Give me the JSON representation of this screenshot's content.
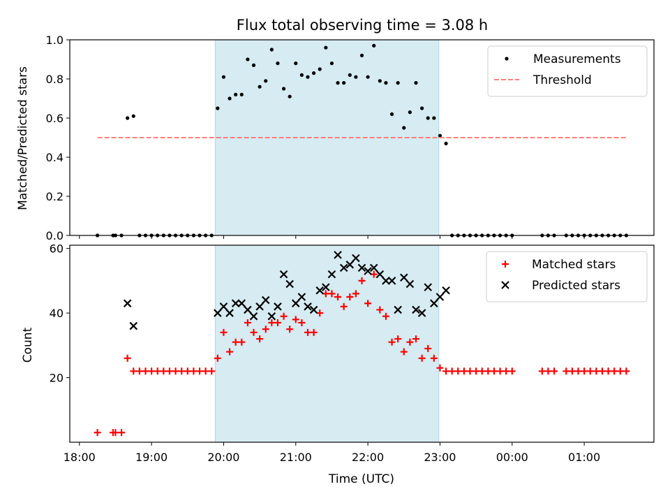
{
  "colors": {
    "span": "#add8e6",
    "threshold": "#ff7f7f",
    "measurement": "#000000",
    "matched": "#ff0000",
    "predicted": "#000000",
    "axes": "#000000"
  },
  "chart_data": [
    {
      "type": "scatter",
      "title": "Flux total observing time = 3.08 h",
      "xlabel": "",
      "ylabel": "Matched/Predicted stars",
      "ylim": [
        0,
        1.0
      ],
      "yticks": [
        "0.0",
        "0.2",
        "0.4",
        "0.6",
        "0.8",
        "1.0"
      ],
      "xlim": [
        "17:52",
        "01:58"
      ],
      "shaded_span": [
        "19:53",
        "22:59"
      ],
      "legend_position": "top-right",
      "series": [
        {
          "name": "Measurements",
          "marker": "dot",
          "points": [
            [
              "18:15",
              0.0
            ],
            [
              "18:28",
              0.0
            ],
            [
              "18:30",
              0.0
            ],
            [
              "18:35",
              0.0
            ],
            [
              "18:40",
              0.6
            ],
            [
              "18:45",
              0.61
            ],
            [
              "18:50",
              0.0
            ],
            [
              "18:55",
              0.0
            ],
            [
              "19:00",
              0.0
            ],
            [
              "19:05",
              0.0
            ],
            [
              "19:10",
              0.0
            ],
            [
              "19:15",
              0.0
            ],
            [
              "19:20",
              0.0
            ],
            [
              "19:25",
              0.0
            ],
            [
              "19:30",
              0.0
            ],
            [
              "19:35",
              0.0
            ],
            [
              "19:40",
              0.0
            ],
            [
              "19:45",
              0.0
            ],
            [
              "19:50",
              0.0
            ],
            [
              "19:55",
              0.65
            ],
            [
              "20:00",
              0.81
            ],
            [
              "20:05",
              0.7
            ],
            [
              "20:10",
              0.72
            ],
            [
              "20:15",
              0.72
            ],
            [
              "20:20",
              0.9
            ],
            [
              "20:25",
              0.87
            ],
            [
              "20:30",
              0.76
            ],
            [
              "20:35",
              0.79
            ],
            [
              "20:40",
              0.95
            ],
            [
              "20:45",
              0.88
            ],
            [
              "20:50",
              0.75
            ],
            [
              "20:55",
              0.71
            ],
            [
              "21:00",
              0.88
            ],
            [
              "21:05",
              0.82
            ],
            [
              "21:10",
              0.81
            ],
            [
              "21:15",
              0.83
            ],
            [
              "21:20",
              0.85
            ],
            [
              "21:25",
              0.96
            ],
            [
              "21:30",
              0.88
            ],
            [
              "21:35",
              0.78
            ],
            [
              "21:40",
              0.78
            ],
            [
              "21:45",
              0.82
            ],
            [
              "21:50",
              0.81
            ],
            [
              "21:55",
              0.92
            ],
            [
              "22:00",
              0.81
            ],
            [
              "22:05",
              0.97
            ],
            [
              "22:10",
              0.79
            ],
            [
              "22:15",
              0.78
            ],
            [
              "22:20",
              0.62
            ],
            [
              "22:25",
              0.78
            ],
            [
              "22:30",
              0.55
            ],
            [
              "22:35",
              0.63
            ],
            [
              "22:40",
              0.78
            ],
            [
              "22:45",
              0.65
            ],
            [
              "22:50",
              0.6
            ],
            [
              "22:55",
              0.6
            ],
            [
              "23:00",
              0.51
            ],
            [
              "23:05",
              0.47
            ],
            [
              "23:10",
              0.0
            ],
            [
              "23:15",
              0.0
            ],
            [
              "23:20",
              0.0
            ],
            [
              "23:25",
              0.0
            ],
            [
              "23:30",
              0.0
            ],
            [
              "23:35",
              0.0
            ],
            [
              "23:40",
              0.0
            ],
            [
              "23:45",
              0.0
            ],
            [
              "23:50",
              0.0
            ],
            [
              "23:55",
              0.0
            ],
            [
              "00:00",
              0.0
            ],
            [
              "00:25",
              0.0
            ],
            [
              "00:30",
              0.0
            ],
            [
              "00:35",
              0.0
            ],
            [
              "00:45",
              0.0
            ],
            [
              "00:50",
              0.0
            ],
            [
              "00:55",
              0.0
            ],
            [
              "01:00",
              0.0
            ],
            [
              "01:05",
              0.0
            ],
            [
              "01:10",
              0.0
            ],
            [
              "01:15",
              0.0
            ],
            [
              "01:20",
              0.0
            ],
            [
              "01:25",
              0.0
            ],
            [
              "01:30",
              0.0
            ],
            [
              "01:35",
              0.0
            ]
          ]
        },
        {
          "name": "Threshold",
          "style": "dashed",
          "x_range": [
            "18:15",
            "01:35"
          ],
          "value": 0.5
        }
      ]
    },
    {
      "type": "scatter",
      "title": "",
      "xlabel": "Time (UTC)",
      "ylabel": "Count",
      "ylim": [
        0,
        61
      ],
      "yticks": [
        "20",
        "40",
        "60"
      ],
      "xlim": [
        "17:52",
        "01:58"
      ],
      "xticks": [
        "18:00",
        "19:00",
        "20:00",
        "21:00",
        "22:00",
        "23:00",
        "00:00",
        "01:00"
      ],
      "shaded_span": [
        "19:53",
        "22:59"
      ],
      "legend_position": "top-right",
      "series": [
        {
          "name": "Matched stars",
          "marker": "plus",
          "points": [
            [
              "18:15",
              3
            ],
            [
              "18:28",
              3
            ],
            [
              "18:30",
              3
            ],
            [
              "18:35",
              3
            ],
            [
              "18:40",
              26
            ],
            [
              "18:45",
              22
            ],
            [
              "18:50",
              22
            ],
            [
              "18:55",
              22
            ],
            [
              "19:00",
              22
            ],
            [
              "19:05",
              22
            ],
            [
              "19:10",
              22
            ],
            [
              "19:15",
              22
            ],
            [
              "19:20",
              22
            ],
            [
              "19:25",
              22
            ],
            [
              "19:30",
              22
            ],
            [
              "19:35",
              22
            ],
            [
              "19:40",
              22
            ],
            [
              "19:45",
              22
            ],
            [
              "19:50",
              22
            ],
            [
              "19:55",
              26
            ],
            [
              "20:00",
              34
            ],
            [
              "20:05",
              28
            ],
            [
              "20:10",
              31
            ],
            [
              "20:15",
              31
            ],
            [
              "20:20",
              37
            ],
            [
              "20:25",
              34
            ],
            [
              "20:30",
              32
            ],
            [
              "20:35",
              35
            ],
            [
              "20:40",
              37
            ],
            [
              "20:45",
              37
            ],
            [
              "20:50",
              39
            ],
            [
              "20:55",
              35
            ],
            [
              "21:00",
              38
            ],
            [
              "21:05",
              37
            ],
            [
              "21:10",
              34
            ],
            [
              "21:15",
              34
            ],
            [
              "21:20",
              40
            ],
            [
              "21:25",
              46
            ],
            [
              "21:30",
              46
            ],
            [
              "21:35",
              45
            ],
            [
              "21:40",
              42
            ],
            [
              "21:45",
              45
            ],
            [
              "21:50",
              46
            ],
            [
              "21:55",
              50
            ],
            [
              "22:00",
              43
            ],
            [
              "22:05",
              52
            ],
            [
              "22:10",
              41
            ],
            [
              "22:15",
              39
            ],
            [
              "22:20",
              31
            ],
            [
              "22:25",
              32
            ],
            [
              "22:30",
              28
            ],
            [
              "22:35",
              31
            ],
            [
              "22:40",
              32
            ],
            [
              "22:45",
              26
            ],
            [
              "22:50",
              29
            ],
            [
              "22:55",
              26
            ],
            [
              "23:00",
              23
            ],
            [
              "23:05",
              22
            ],
            [
              "23:10",
              22
            ],
            [
              "23:15",
              22
            ],
            [
              "23:20",
              22
            ],
            [
              "23:25",
              22
            ],
            [
              "23:30",
              22
            ],
            [
              "23:35",
              22
            ],
            [
              "23:40",
              22
            ],
            [
              "23:45",
              22
            ],
            [
              "23:50",
              22
            ],
            [
              "23:55",
              22
            ],
            [
              "00:00",
              22
            ],
            [
              "00:25",
              22
            ],
            [
              "00:30",
              22
            ],
            [
              "00:35",
              22
            ],
            [
              "00:45",
              22
            ],
            [
              "00:50",
              22
            ],
            [
              "00:55",
              22
            ],
            [
              "01:00",
              22
            ],
            [
              "01:05",
              22
            ],
            [
              "01:10",
              22
            ],
            [
              "01:15",
              22
            ],
            [
              "01:20",
              22
            ],
            [
              "01:25",
              22
            ],
            [
              "01:30",
              22
            ],
            [
              "01:35",
              22
            ]
          ]
        },
        {
          "name": "Predicted stars",
          "marker": "x",
          "points": [
            [
              "18:40",
              43
            ],
            [
              "18:45",
              36
            ],
            [
              "19:55",
              40
            ],
            [
              "20:00",
              42
            ],
            [
              "20:05",
              40
            ],
            [
              "20:10",
              43
            ],
            [
              "20:15",
              43
            ],
            [
              "20:20",
              41
            ],
            [
              "20:25",
              39
            ],
            [
              "20:30",
              42
            ],
            [
              "20:35",
              44
            ],
            [
              "20:40",
              39
            ],
            [
              "20:45",
              42
            ],
            [
              "20:50",
              52
            ],
            [
              "20:55",
              49
            ],
            [
              "21:00",
              43
            ],
            [
              "21:05",
              45
            ],
            [
              "21:10",
              42
            ],
            [
              "21:15",
              41
            ],
            [
              "21:20",
              47
            ],
            [
              "21:25",
              48
            ],
            [
              "21:30",
              52
            ],
            [
              "21:35",
              58
            ],
            [
              "21:40",
              54
            ],
            [
              "21:45",
              55
            ],
            [
              "21:50",
              57
            ],
            [
              "21:55",
              54
            ],
            [
              "22:00",
              53
            ],
            [
              "22:05",
              54
            ],
            [
              "22:10",
              52
            ],
            [
              "22:15",
              50
            ],
            [
              "22:20",
              50
            ],
            [
              "22:25",
              41
            ],
            [
              "22:30",
              51
            ],
            [
              "22:35",
              49
            ],
            [
              "22:40",
              41
            ],
            [
              "22:45",
              40
            ],
            [
              "22:50",
              48
            ],
            [
              "22:55",
              43
            ],
            [
              "23:00",
              45
            ],
            [
              "23:05",
              47
            ]
          ]
        }
      ]
    }
  ]
}
